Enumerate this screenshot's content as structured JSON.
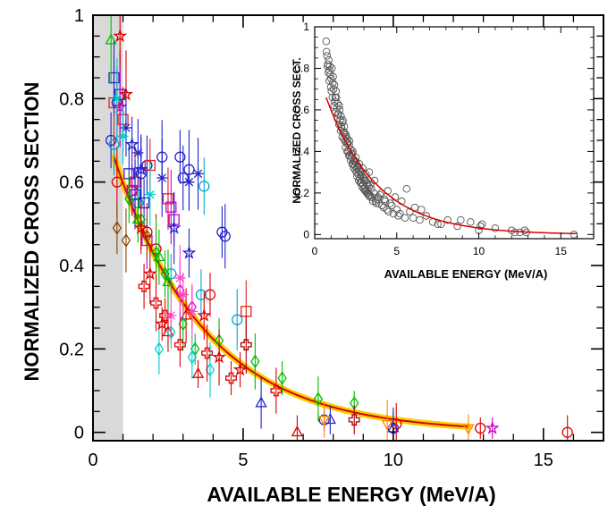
{
  "chart_data": [
    {
      "type": "scatter",
      "title": "",
      "xlabel": "AVAILABLE  ENERGY  (MeV/A)",
      "ylabel": "NORMALIZED  CROSS  SECTION",
      "xlim": [
        0,
        17
      ],
      "ylim": [
        -0.02,
        1.0
      ],
      "xticks": [
        "0",
        "5",
        "10",
        "15"
      ],
      "yticks": [
        "0",
        "0.2",
        "0.4",
        "0.6",
        "0.8",
        "1"
      ],
      "grid": false,
      "shaded_band_x": [
        0,
        1.0
      ],
      "shaded_band_color": "#d9d9d9",
      "fit_curve": {
        "form": "a*exp(-x/b)",
        "a": 0.83,
        "b": 3.05,
        "line_color": "#dd0000",
        "band_color": "#f7d000",
        "x_range": [
          0.7,
          12.5
        ]
      },
      "series": [
        {
          "marker": "circle",
          "color": "#2222cc",
          "x": [
            0.6,
            0.8,
            1.6,
            1.8,
            2.3,
            2.9,
            3.0,
            3.2,
            4.3,
            4.4,
            7.7,
            10.0
          ],
          "y": [
            0.7,
            0.79,
            0.62,
            0.64,
            0.66,
            0.66,
            0.61,
            0.63,
            0.48,
            0.47,
            0.03,
            0.01
          ]
        },
        {
          "marker": "circle",
          "color": "#dd0000",
          "x": [
            0.8,
            1.3,
            1.8,
            2.1,
            3.9,
            10.1,
            12.9,
            15.8
          ],
          "y": [
            0.6,
            0.58,
            0.48,
            0.44,
            0.33,
            0.02,
            0.01,
            0.0
          ]
        },
        {
          "marker": "circle",
          "color": "#00aacc",
          "x": [
            0.7,
            1.5,
            2.6,
            3.6,
            4.8,
            3.7
          ],
          "y": [
            0.69,
            0.55,
            0.38,
            0.33,
            0.27,
            0.59
          ]
        },
        {
          "marker": "square",
          "color": "#dd2222",
          "x": [
            0.7,
            1.0,
            1.4,
            1.9,
            2.5,
            5.1
          ],
          "y": [
            0.79,
            0.75,
            0.6,
            0.64,
            0.56,
            0.29
          ]
        },
        {
          "marker": "square",
          "color": "#2222cc",
          "x": [
            0.7,
            0.9,
            1.2,
            1.4,
            1.7
          ],
          "y": [
            0.85,
            0.81,
            0.62,
            0.57,
            0.55
          ]
        },
        {
          "marker": "square",
          "color": "#cc00cc",
          "x": [
            1.3,
            1.8,
            2.6,
            2.7
          ],
          "y": [
            0.58,
            0.46,
            0.54,
            0.51
          ]
        },
        {
          "marker": "triangle",
          "color": "#00bb00",
          "x": [
            0.6,
            1.5,
            2.2,
            2.5
          ],
          "y": [
            0.94,
            0.51,
            0.42,
            0.36
          ]
        },
        {
          "marker": "triangle",
          "color": "#dd0000",
          "x": [
            2.5,
            3.1,
            3.5,
            6.8
          ],
          "y": [
            0.24,
            0.28,
            0.14,
            0.0
          ]
        },
        {
          "marker": "triangle",
          "color": "#2222cc",
          "x": [
            5.6,
            7.9,
            10.0
          ],
          "y": [
            0.07,
            0.03,
            0.01
          ]
        },
        {
          "marker": "inverted-triangle",
          "color": "#ff8800",
          "x": [
            7.7,
            9.8,
            12.5
          ],
          "y": [
            0.03,
            0.02,
            0.01
          ]
        },
        {
          "marker": "diamond",
          "color": "#00bb00",
          "x": [
            1.2,
            1.6,
            2.1,
            2.4,
            3.0,
            3.4,
            4.2,
            5.4,
            6.3,
            7.5,
            8.7
          ],
          "y": [
            0.56,
            0.51,
            0.43,
            0.38,
            0.26,
            0.2,
            0.22,
            0.17,
            0.13,
            0.08,
            0.07
          ]
        },
        {
          "marker": "diamond",
          "color": "#00cccc",
          "x": [
            2.2,
            2.6,
            3.3,
            3.9
          ],
          "y": [
            0.2,
            0.24,
            0.18,
            0.15
          ]
        },
        {
          "marker": "diamond",
          "color": "#884400",
          "x": [
            0.8,
            1.1,
            1.8
          ],
          "y": [
            0.49,
            0.46,
            0.47
          ]
        },
        {
          "marker": "diamond",
          "color": "#cc00cc",
          "x": [
            2.9,
            3.3
          ],
          "y": [
            0.34,
            0.3
          ]
        },
        {
          "marker": "star",
          "color": "#dd0000",
          "x": [
            0.9,
            1.1,
            1.6,
            1.9,
            2.3,
            3.7,
            4.2,
            4.9
          ],
          "y": [
            0.95,
            0.81,
            0.49,
            0.38,
            0.26,
            0.28,
            0.18,
            0.15
          ]
        },
        {
          "marker": "star",
          "color": "#2222cc",
          "x": [
            1.3,
            1.6,
            2.7,
            3.2
          ],
          "y": [
            0.69,
            0.63,
            0.49,
            0.43
          ]
        },
        {
          "marker": "star",
          "color": "#cc00cc",
          "x": [
            0.9,
            13.3
          ],
          "y": [
            0.78,
            0.01
          ]
        },
        {
          "marker": "cross",
          "color": "#dd0000",
          "x": [
            1.7,
            2.1,
            2.4,
            2.9,
            3.8,
            4.6,
            6.1
          ],
          "y": [
            0.35,
            0.31,
            0.28,
            0.21,
            0.19,
            0.13,
            0.1
          ]
        },
        {
          "marker": "cross",
          "color": "#aa0000",
          "x": [
            5.1,
            8.7
          ],
          "y": [
            0.21,
            0.03
          ]
        },
        {
          "marker": "asterisk",
          "color": "#ff44cc",
          "x": [
            2.6,
            2.9,
            3.0,
            3.3
          ],
          "y": [
            0.28,
            0.37,
            0.33,
            0.29
          ]
        },
        {
          "marker": "asterisk",
          "color": "#2222cc",
          "x": [
            1.1,
            1.5,
            2.3,
            3.2,
            3.5
          ],
          "y": [
            0.73,
            0.67,
            0.61,
            0.6,
            0.62
          ]
        },
        {
          "marker": "asterisk",
          "color": "#00cccc",
          "x": [
            0.8,
            1.0,
            1.9
          ],
          "y": [
            0.8,
            0.71,
            0.57
          ]
        }
      ]
    },
    {
      "type": "scatter",
      "title": "",
      "xlabel": "AVAILABLE  ENERGY  (MeV/A)",
      "ylabel": "NORMALIZED  CROSS  SECT.",
      "xlim": [
        0,
        17
      ],
      "ylim": [
        -0.02,
        1.0
      ],
      "xticks": [
        "0",
        "5",
        "10",
        "15"
      ],
      "yticks": [
        "0",
        "0.2",
        "0.4",
        "0.6",
        "0.8",
        "1"
      ],
      "grid": false,
      "fit_curve": {
        "form": "a*exp(-x/b)",
        "a": 0.83,
        "b": 3.05,
        "line_color": "#dd0000",
        "x_range": [
          0.7,
          16
        ]
      },
      "marker_color": "#555555",
      "x": [
        0.7,
        0.75,
        0.8,
        0.85,
        0.9,
        0.95,
        1.0,
        1.05,
        1.1,
        1.15,
        1.2,
        1.25,
        1.3,
        1.35,
        1.4,
        1.45,
        1.5,
        1.55,
        1.6,
        1.65,
        1.7,
        1.75,
        1.8,
        1.85,
        1.9,
        1.95,
        2.0,
        2.05,
        2.1,
        2.15,
        2.2,
        2.25,
        2.3,
        2.35,
        2.4,
        2.45,
        2.5,
        2.55,
        2.6,
        2.65,
        2.7,
        2.75,
        2.8,
        2.85,
        2.9,
        2.95,
        3.0,
        3.05,
        3.1,
        3.15,
        3.2,
        3.25,
        3.3,
        3.35,
        3.4,
        3.5,
        3.6,
        3.7,
        3.8,
        3.9,
        4.0,
        4.1,
        4.2,
        4.3,
        4.4,
        4.5,
        4.6,
        4.8,
        5.0,
        5.1,
        5.3,
        5.5,
        5.8,
        6.1,
        6.4,
        6.8,
        7.2,
        7.7,
        8.1,
        8.7,
        9.5,
        10.0,
        10.2,
        11.0,
        12.0,
        12.5,
        12.9,
        15.8,
        0.72,
        0.78,
        0.83,
        0.88,
        0.92,
        0.98,
        1.02,
        1.08,
        1.12,
        1.18,
        1.22,
        1.28,
        1.32,
        1.38,
        1.42,
        1.48,
        1.52,
        1.58,
        1.62,
        1.68,
        1.72,
        1.78,
        1.82,
        1.88,
        1.92,
        1.98,
        2.02,
        2.08,
        2.12,
        2.18,
        2.22,
        2.28,
        2.32,
        2.38,
        2.42,
        2.48,
        2.52,
        2.58,
        2.62,
        2.68,
        2.72,
        2.78,
        2.82,
        2.88,
        2.92,
        2.98,
        3.02,
        3.08,
        3.12,
        3.18,
        3.22,
        3.28,
        3.32,
        3.38,
        3.45,
        3.55,
        3.65,
        3.75,
        3.85,
        4.05,
        4.25,
        4.45,
        4.7,
        4.9,
        5.2,
        5.6,
        6.0,
        6.5,
        7.5,
        8.9,
        10.1,
        12.2,
        12.8
      ],
      "y": [
        0.93,
        0.86,
        0.82,
        0.84,
        0.79,
        0.77,
        0.75,
        0.8,
        0.73,
        0.7,
        0.72,
        0.66,
        0.69,
        0.61,
        0.63,
        0.58,
        0.62,
        0.55,
        0.57,
        0.51,
        0.54,
        0.49,
        0.52,
        0.45,
        0.48,
        0.44,
        0.46,
        0.4,
        0.43,
        0.38,
        0.41,
        0.37,
        0.39,
        0.34,
        0.36,
        0.33,
        0.35,
        0.3,
        0.32,
        0.29,
        0.31,
        0.27,
        0.3,
        0.25,
        0.28,
        0.24,
        0.27,
        0.22,
        0.26,
        0.21,
        0.25,
        0.2,
        0.23,
        0.19,
        0.24,
        0.18,
        0.2,
        0.16,
        0.17,
        0.15,
        0.19,
        0.14,
        0.13,
        0.16,
        0.12,
        0.11,
        0.15,
        0.1,
        0.12,
        0.09,
        0.16,
        0.08,
        0.11,
        0.13,
        0.07,
        0.09,
        0.06,
        0.05,
        0.07,
        0.04,
        0.06,
        0.02,
        0.05,
        0.03,
        0.02,
        0.01,
        0.01,
        0.0,
        0.88,
        0.81,
        0.78,
        0.74,
        0.81,
        0.71,
        0.69,
        0.66,
        0.76,
        0.62,
        0.64,
        0.59,
        0.66,
        0.56,
        0.58,
        0.53,
        0.6,
        0.5,
        0.52,
        0.47,
        0.55,
        0.46,
        0.49,
        0.42,
        0.47,
        0.4,
        0.44,
        0.38,
        0.45,
        0.36,
        0.39,
        0.34,
        0.4,
        0.32,
        0.35,
        0.31,
        0.37,
        0.28,
        0.33,
        0.26,
        0.34,
        0.25,
        0.29,
        0.23,
        0.32,
        0.22,
        0.26,
        0.21,
        0.29,
        0.2,
        0.24,
        0.19,
        0.3,
        0.18,
        0.22,
        0.16,
        0.26,
        0.15,
        0.18,
        0.2,
        0.17,
        0.21,
        0.14,
        0.18,
        0.1,
        0.22,
        0.08,
        0.12,
        0.05,
        0.07,
        0.04,
        0.01,
        0.02
      ]
    }
  ]
}
